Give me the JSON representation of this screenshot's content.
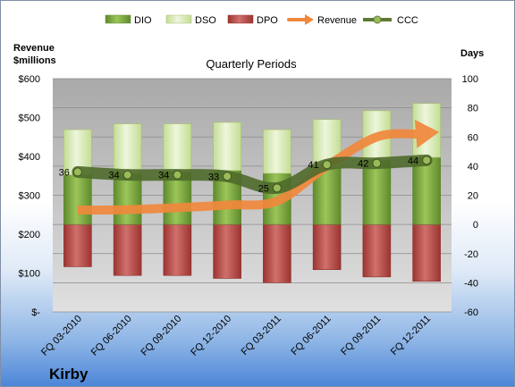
{
  "company": "Kirby",
  "chart_data": {
    "type": "bar",
    "title": "Quarterly Periods",
    "categories": [
      "FQ 03-2010",
      "FQ 06-2010",
      "FQ 09-2010",
      "FQ 12-2010",
      "FQ 03-2011",
      "FQ 06-2011",
      "FQ 09-2011",
      "FQ 12-2011"
    ],
    "left_axis": {
      "label": "Revenue\n$millions",
      "ylim": [
        0,
        600
      ],
      "ticks": [
        "$-",
        "$100",
        "$200",
        "$300",
        "$400",
        "$500",
        "$600"
      ]
    },
    "right_axis": {
      "label": "Days",
      "ylim": [
        -60,
        100
      ],
      "ticks": [
        "-60",
        "-40",
        "-20",
        "0",
        "20",
        "40",
        "60",
        "80",
        "100"
      ]
    },
    "series": [
      {
        "name": "DIO",
        "type": "stacked-bar",
        "axis": "days",
        "values": [
          34,
          35,
          36,
          37,
          35,
          39,
          44,
          46
        ],
        "color": "#7aa63f"
      },
      {
        "name": "DSO",
        "type": "stacked-bar",
        "axis": "days",
        "values": [
          31,
          34,
          33,
          33,
          30,
          33,
          34,
          37
        ],
        "color": "#d6e8b0"
      },
      {
        "name": "DPO",
        "type": "stacked-bar",
        "axis": "days",
        "values": [
          -29,
          -35,
          -35,
          -37,
          -40,
          -31,
          -36,
          -39
        ],
        "color": "#c0504d"
      },
      {
        "name": "Revenue",
        "type": "line",
        "axis": "revenue",
        "values": [
          262,
          263,
          268,
          275,
          285,
          375,
          450,
          460
        ],
        "color": "#f0883c"
      },
      {
        "name": "CCC",
        "type": "line",
        "axis": "days",
        "values": [
          36,
          34,
          34,
          33,
          25,
          41,
          42,
          44
        ],
        "color": "#5f7a35"
      }
    ],
    "ccc_labels": [
      "36",
      "34",
      "34",
      "33",
      "25",
      "41",
      "42",
      "44"
    ],
    "grid": true,
    "legend": "top"
  }
}
